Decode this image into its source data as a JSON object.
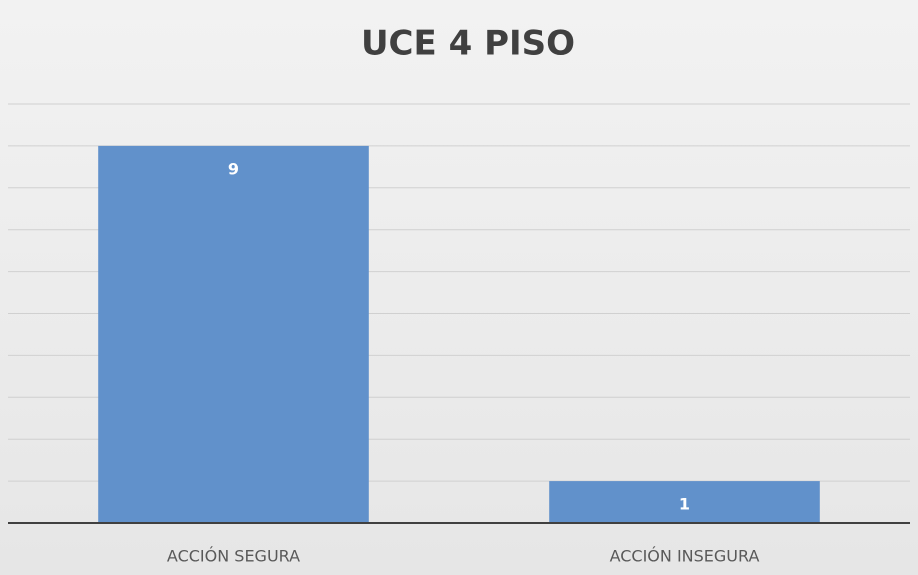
{
  "chart_data": {
    "type": "bar",
    "title": "UCE 4 PISO",
    "categories": [
      "ACCIÓN SEGURA",
      "ACCIÓN INSEGURA"
    ],
    "values": [
      9,
      1
    ],
    "color": "#6191cb",
    "ylim": [
      0,
      10
    ],
    "yticks": [
      0,
      1,
      2,
      3,
      4,
      5,
      6,
      7,
      8,
      9,
      10
    ],
    "grid": true
  }
}
